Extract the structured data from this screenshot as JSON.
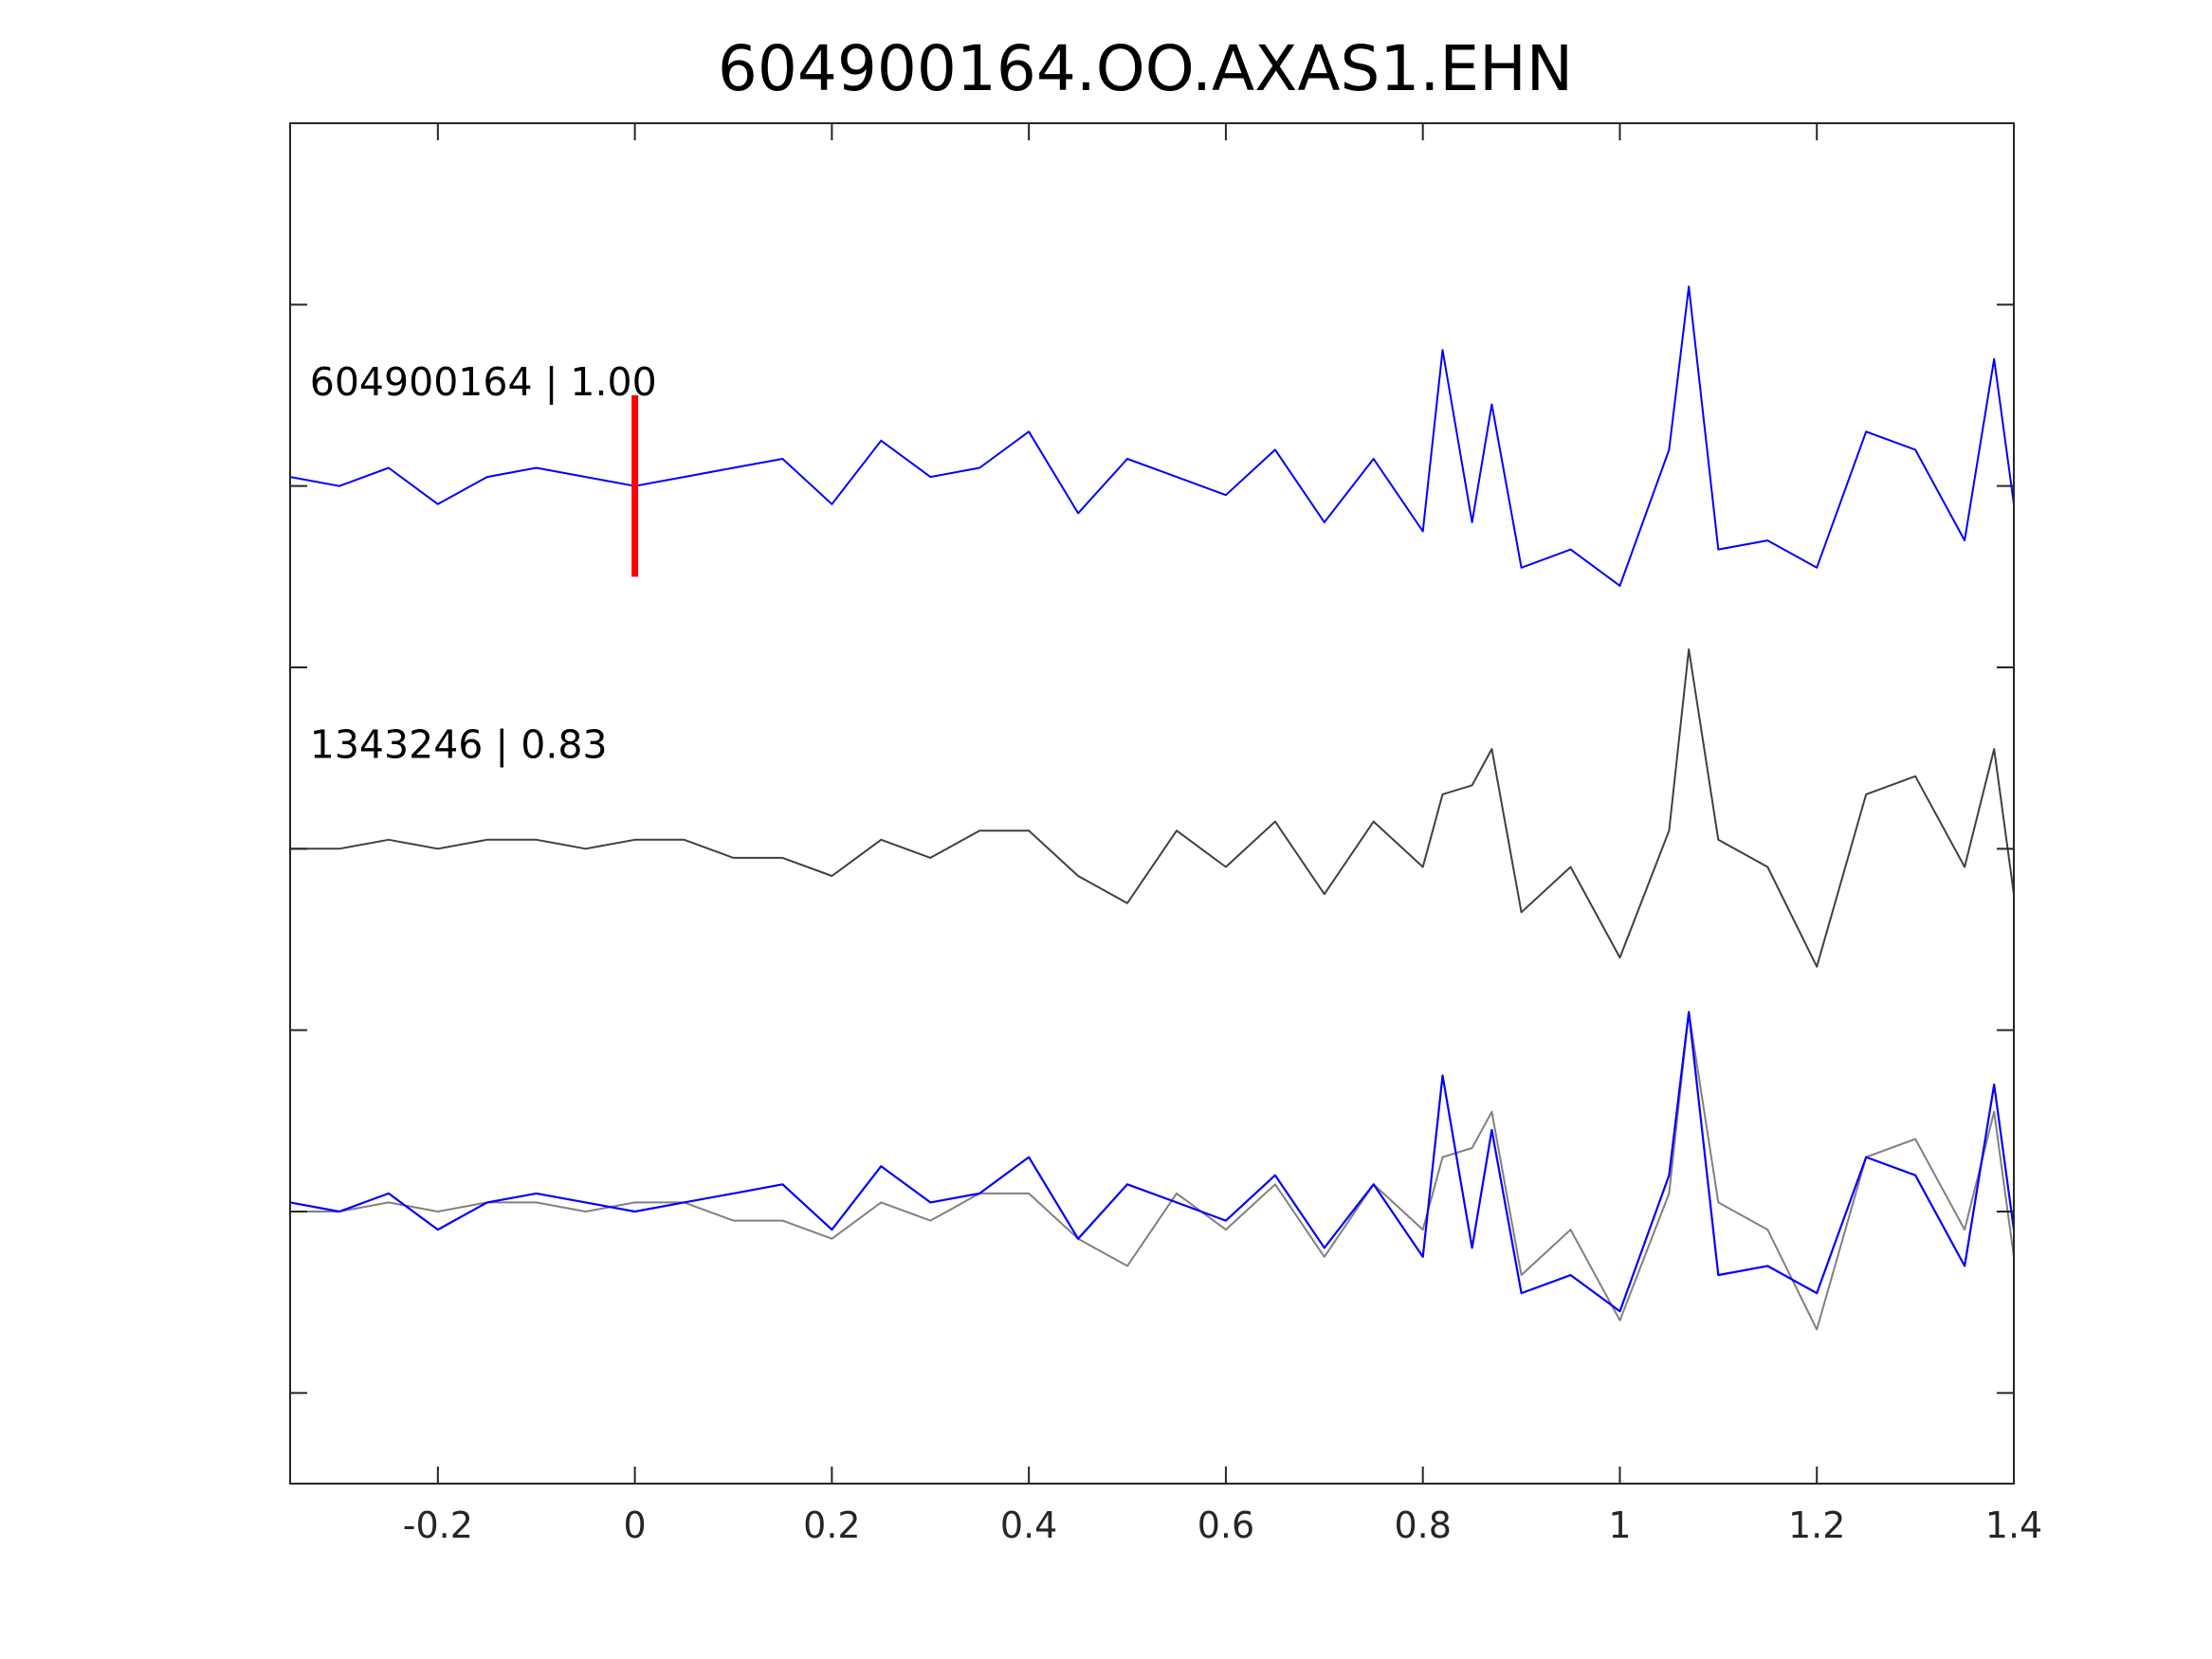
{
  "chart_data": {
    "type": "line",
    "title": "604900164.OO.AXAS1.EHN",
    "xlabel": "",
    "ylabel": "",
    "xlim": [
      -0.35,
      1.4
    ],
    "ylim": [
      -0.5,
      7.0
    ],
    "grid": false,
    "x_ticks": [
      -0.2,
      0,
      0.2,
      0.4,
      0.6,
      0.8,
      1,
      1.2,
      1.4
    ],
    "x_tick_labels": [
      "-0.2",
      "0",
      "0.2",
      "0.4",
      "0.6",
      "0.8",
      "1",
      "1.2",
      "1.4"
    ],
    "y_ticks": [
      0,
      1,
      2,
      3,
      4,
      5,
      6
    ],
    "colors": {
      "trace_1": "#0000ff",
      "trace_2": "#404040",
      "overlay_gray": "#808080",
      "pick_marker": "#ff0000",
      "axes": "#262626"
    },
    "pick_marker": {
      "x": 0,
      "y_range": [
        4.5,
        5.5
      ]
    },
    "trace_labels": [
      {
        "text": "604900164 | 1.00",
        "x": -0.33,
        "y": 5.5
      },
      {
        "text": "1343246 | 0.83",
        "x": -0.33,
        "y": 3.5
      }
    ],
    "x": [
      -0.35,
      -0.3,
      -0.25,
      -0.2,
      -0.15,
      -0.1,
      -0.05,
      0,
      0.05,
      0.1,
      0.15,
      0.2,
      0.25,
      0.3,
      0.35,
      0.4,
      0.45,
      0.5,
      0.55,
      0.6,
      0.65,
      0.7,
      0.75,
      0.8,
      0.82,
      0.85,
      0.87,
      0.9,
      0.95,
      1,
      1.05,
      1.07,
      1.1,
      1.15,
      1.2,
      1.25,
      1.3,
      1.35,
      1.38,
      1.4
    ],
    "series": [
      {
        "name": "",
        "baseline": 5,
        "color": "#0000ff",
        "values": [
          0.05,
          0.0,
          0.1,
          -0.1,
          0.05,
          0.1,
          0.05,
          0.0,
          0.05,
          0.1,
          0.15,
          -0.1,
          0.25,
          0.05,
          0.1,
          0.3,
          -0.15,
          0.15,
          0.05,
          -0.05,
          0.2,
          -0.2,
          0.15,
          -0.25,
          0.75,
          -0.2,
          0.45,
          -0.45,
          -0.35,
          -0.55,
          0.2,
          1.1,
          -0.35,
          -0.3,
          -0.45,
          0.3,
          0.2,
          -0.3,
          0.7,
          -0.1
        ]
      },
      {
        "name": "",
        "baseline": 3,
        "color": "#404040",
        "values": [
          0.0,
          0.0,
          0.05,
          0.0,
          0.05,
          0.05,
          0.0,
          0.05,
          0.05,
          -0.05,
          -0.05,
          -0.15,
          0.05,
          -0.05,
          0.1,
          0.1,
          -0.15,
          -0.3,
          0.1,
          -0.1,
          0.15,
          -0.25,
          0.15,
          -0.1,
          0.3,
          0.35,
          0.55,
          -0.35,
          -0.1,
          -0.6,
          0.1,
          1.1,
          0.05,
          -0.1,
          -0.65,
          0.3,
          0.4,
          -0.1,
          0.55,
          -0.25
        ]
      },
      {
        "name": "",
        "baseline": 1,
        "color": "#808080",
        "values": [
          0.0,
          0.0,
          0.05,
          0.0,
          0.05,
          0.05,
          0.0,
          0.05,
          0.05,
          -0.05,
          -0.05,
          -0.15,
          0.05,
          -0.05,
          0.1,
          0.1,
          -0.15,
          -0.3,
          0.1,
          -0.1,
          0.15,
          -0.25,
          0.15,
          -0.1,
          0.3,
          0.35,
          0.55,
          -0.35,
          -0.1,
          -0.6,
          0.1,
          1.1,
          0.05,
          -0.1,
          -0.65,
          0.3,
          0.4,
          -0.1,
          0.55,
          -0.25
        ]
      },
      {
        "name": "",
        "baseline": 1,
        "color": "#0000ff",
        "values": [
          0.05,
          0.0,
          0.1,
          -0.1,
          0.05,
          0.1,
          0.05,
          0.0,
          0.05,
          0.1,
          0.15,
          -0.1,
          0.25,
          0.05,
          0.1,
          0.3,
          -0.15,
          0.15,
          0.05,
          -0.05,
          0.2,
          -0.2,
          0.15,
          -0.25,
          0.75,
          -0.2,
          0.45,
          -0.45,
          -0.35,
          -0.55,
          0.2,
          1.1,
          -0.35,
          -0.3,
          -0.45,
          0.3,
          0.2,
          -0.3,
          0.7,
          -0.1
        ]
      }
    ]
  }
}
